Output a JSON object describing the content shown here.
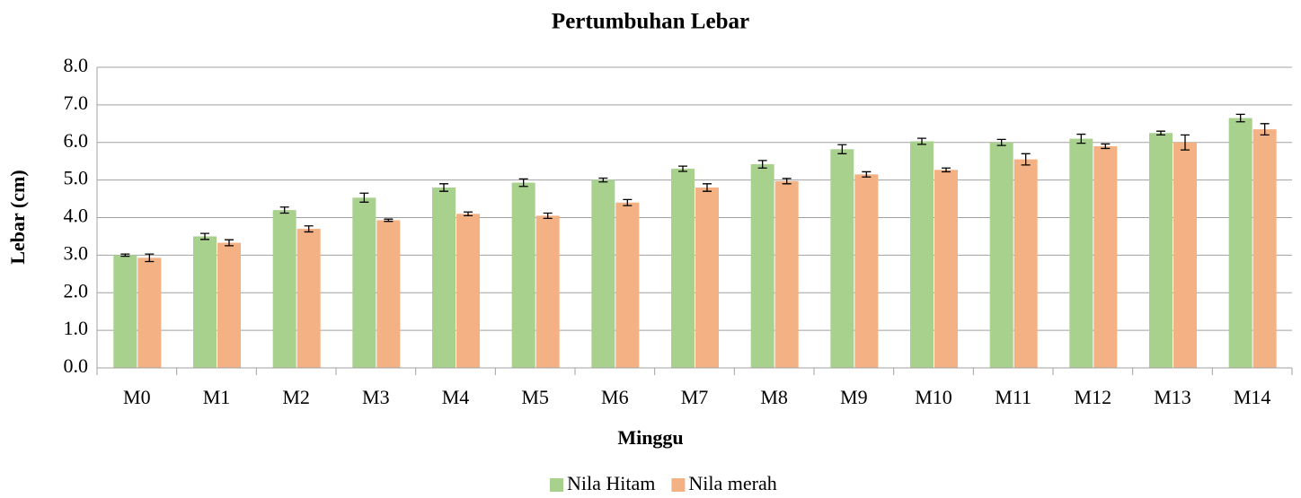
{
  "chart_data": {
    "type": "bar",
    "title": "Pertumbuhan Lebar",
    "x_label": "Minggu",
    "y_label": "Lebar (cm)",
    "categories": [
      "M0",
      "M1",
      "M2",
      "M3",
      "M4",
      "M5",
      "M6",
      "M7",
      "M8",
      "M9",
      "M10",
      "M11",
      "M12",
      "M13",
      "M14"
    ],
    "series": [
      {
        "name": "Nila Hitam",
        "color": "#a9d18e",
        "values": [
          3.0,
          3.5,
          4.2,
          4.53,
          4.8,
          4.93,
          5.0,
          5.3,
          5.42,
          5.82,
          6.03,
          6.0,
          6.1,
          6.25,
          6.65
        ],
        "errors": [
          0.03,
          0.08,
          0.08,
          0.12,
          0.1,
          0.1,
          0.05,
          0.07,
          0.1,
          0.12,
          0.08,
          0.08,
          0.12,
          0.05,
          0.1
        ]
      },
      {
        "name": "Nila merah",
        "color": "#f4b183",
        "values": [
          2.93,
          3.33,
          3.7,
          3.93,
          4.1,
          4.05,
          4.4,
          4.8,
          4.97,
          5.15,
          5.27,
          5.55,
          5.9,
          6.0,
          6.35
        ],
        "errors": [
          0.1,
          0.08,
          0.08,
          0.03,
          0.05,
          0.07,
          0.08,
          0.1,
          0.07,
          0.07,
          0.05,
          0.15,
          0.06,
          0.2,
          0.15
        ]
      }
    ],
    "ylim": [
      0,
      8
    ],
    "yticks": [
      {
        "value": 0,
        "label": "0.0"
      },
      {
        "value": 1,
        "label": "1.0"
      },
      {
        "value": 2,
        "label": "2.0"
      },
      {
        "value": 3,
        "label": "3.0"
      },
      {
        "value": 4,
        "label": "4.0"
      },
      {
        "value": 5,
        "label": "5.0"
      },
      {
        "value": 6,
        "label": "6.0"
      },
      {
        "value": 7,
        "label": "7.0"
      },
      {
        "value": 8,
        "label": "8.0"
      }
    ],
    "grid": true,
    "legend": "bottom"
  }
}
